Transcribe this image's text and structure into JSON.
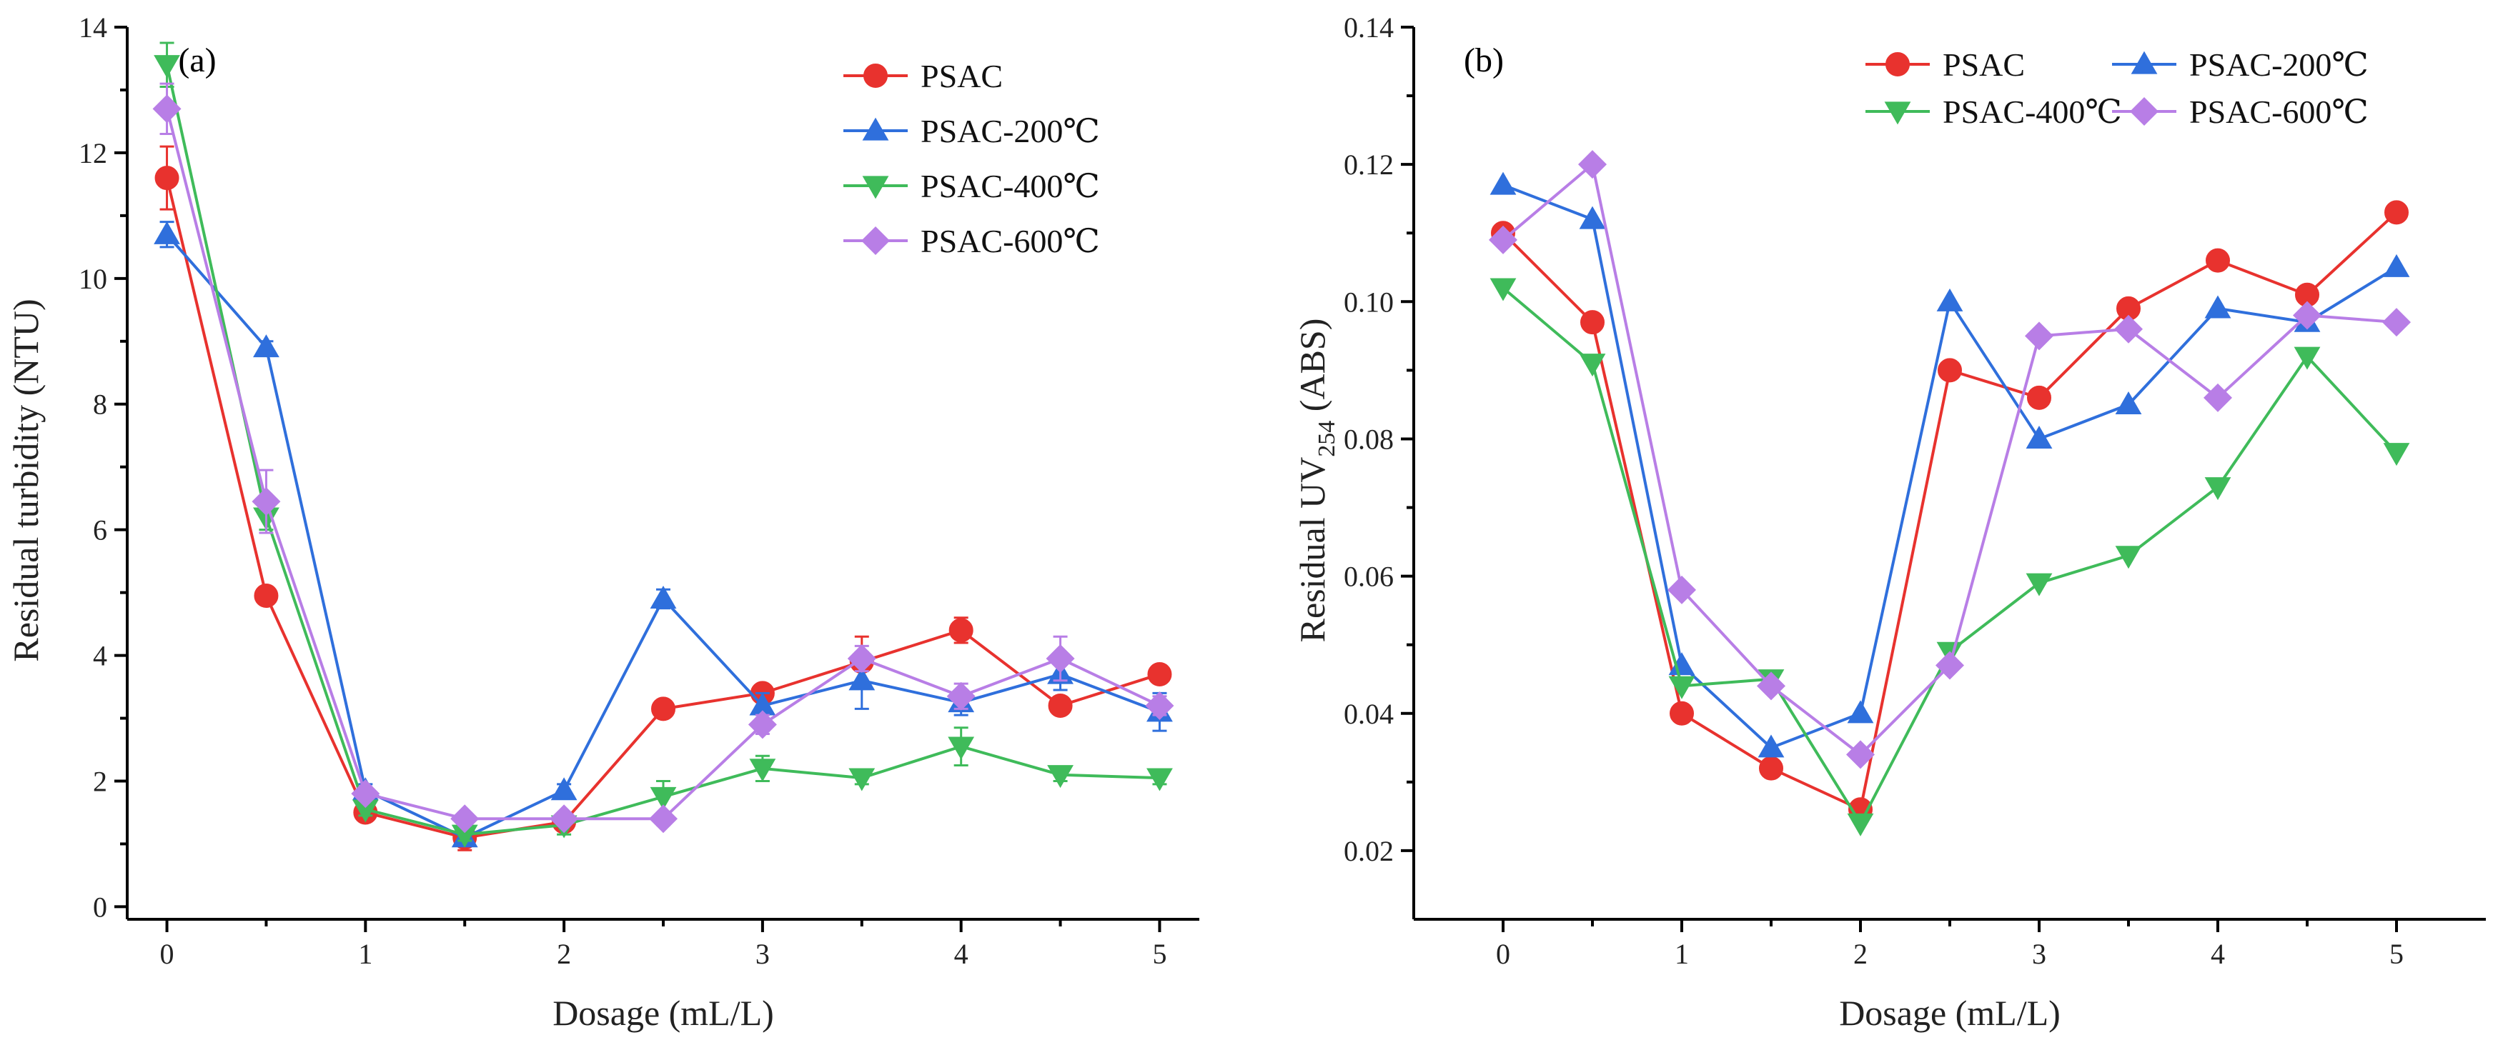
{
  "chart_data": [
    {
      "id": "a",
      "type": "line",
      "panel_label": "(a)",
      "title": "",
      "xlabel": "Dosage (mL/L)",
      "ylabel": "Residual turbidity (NTU)",
      "xlim": [
        -0.2,
        5.2
      ],
      "ylim": [
        -0.2,
        14
      ],
      "xticks": [
        0,
        1,
        2,
        3,
        4,
        5
      ],
      "yticks": [
        0,
        2,
        4,
        6,
        8,
        10,
        12,
        14
      ],
      "ytick_decimals": 0,
      "x": [
        0,
        0.5,
        1,
        1.5,
        2,
        2.5,
        3,
        3.5,
        4,
        4.5,
        5
      ],
      "legend_position": "top-right",
      "series": [
        {
          "name": "PSAC",
          "marker": "circle",
          "color": "#e8322e",
          "values": [
            11.6,
            4.95,
            1.5,
            1.1,
            1.35,
            3.15,
            3.4,
            3.9,
            4.4,
            3.2,
            3.7
          ],
          "errors": [
            0.5,
            0.1,
            0.1,
            0.2,
            0.1,
            0.1,
            0.1,
            0.4,
            0.2,
            0.1,
            0.1
          ]
        },
        {
          "name": "PSAC-200℃",
          "marker": "triangle-up",
          "color": "#2f6fdc",
          "values": [
            10.7,
            8.9,
            1.85,
            1.1,
            1.85,
            4.9,
            3.2,
            3.6,
            3.25,
            3.7,
            3.1
          ],
          "errors": [
            0.2,
            0.1,
            0.1,
            0.1,
            0.1,
            0.15,
            0.2,
            0.45,
            0.2,
            0.25,
            0.3
          ]
        },
        {
          "name": "PSAC-400℃",
          "marker": "triangle-down",
          "color": "#3fbb5a",
          "values": [
            13.4,
            6.2,
            1.55,
            1.15,
            1.3,
            1.75,
            2.2,
            2.05,
            2.55,
            2.1,
            2.05
          ],
          "errors": [
            0.35,
            0.2,
            0.1,
            0.1,
            0.15,
            0.25,
            0.2,
            0.1,
            0.3,
            0.1,
            0.1
          ]
        },
        {
          "name": "PSAC-600℃",
          "marker": "diamond",
          "color": "#b87ee6",
          "values": [
            12.7,
            6.45,
            1.8,
            1.4,
            1.4,
            1.4,
            2.9,
            3.95,
            3.35,
            3.95,
            3.2
          ],
          "errors": [
            0.4,
            0.5,
            0.1,
            0.1,
            0.1,
            0.1,
            0.15,
            0.2,
            0.2,
            0.35,
            0.15
          ]
        }
      ]
    },
    {
      "id": "b",
      "type": "line",
      "panel_label": "(b)",
      "title": "",
      "xlabel": "Dosage (mL/L)",
      "ylabel_main": "Residual UV",
      "ylabel_sub": "254",
      "ylabel_suffix": " (ABS)",
      "xlim": [
        -0.5,
        5.5
      ],
      "ylim": [
        0.01,
        0.14
      ],
      "xticks": [
        0,
        1,
        2,
        3,
        4,
        5
      ],
      "yticks": [
        0.02,
        0.04,
        0.06,
        0.08,
        0.1,
        0.12,
        0.14
      ],
      "ytick_decimals": 2,
      "x": [
        0,
        0.5,
        1,
        1.5,
        2,
        2.5,
        3,
        3.5,
        4,
        4.5,
        5
      ],
      "legend_position": "top",
      "series": [
        {
          "name": "PSAC",
          "marker": "circle",
          "color": "#e8322e",
          "values": [
            0.11,
            0.097,
            0.04,
            0.032,
            0.026,
            0.09,
            0.086,
            0.099,
            0.106,
            0.101,
            0.113
          ]
        },
        {
          "name": "PSAC-200℃",
          "marker": "triangle-up",
          "color": "#2f6fdc",
          "values": [
            0.117,
            0.112,
            0.047,
            0.035,
            0.04,
            0.1,
            0.08,
            0.085,
            0.099,
            0.097,
            0.105
          ]
        },
        {
          "name": "PSAC-400℃",
          "marker": "triangle-down",
          "color": "#3fbb5a",
          "values": [
            0.102,
            0.091,
            0.044,
            0.045,
            0.024,
            0.049,
            0.059,
            0.063,
            0.073,
            0.092,
            0.078
          ]
        },
        {
          "name": "PSAC-600℃",
          "marker": "diamond",
          "color": "#b87ee6",
          "values": [
            0.109,
            0.12,
            0.058,
            0.044,
            0.034,
            0.047,
            0.095,
            0.096,
            0.086,
            0.098,
            0.097
          ]
        }
      ]
    }
  ]
}
